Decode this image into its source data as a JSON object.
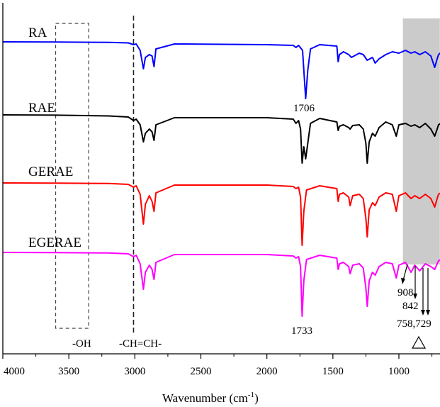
{
  "chart_data": {
    "type": "line",
    "title": "",
    "xlabel": "Wavenumber (cm",
    "xlabel_sup": "-1",
    "xlabel_end": ")",
    "ylabel": "",
    "xlim": [
      4000,
      600
    ],
    "x_reversed": true,
    "xticks": [
      4000,
      3500,
      3000,
      2500,
      2000,
      1500,
      1000
    ],
    "grid": false,
    "legend": "none",
    "series": [
      {
        "name": "RA",
        "color": "#0000ff",
        "baseline": 0,
        "points": [
          [
            4000,
            0
          ],
          [
            3600,
            0.2
          ],
          [
            3200,
            0.8
          ],
          [
            3050,
            1.5
          ],
          [
            3010,
            4
          ],
          [
            2990,
            3
          ],
          [
            2960,
            12
          ],
          [
            2935,
            38
          ],
          [
            2920,
            22
          ],
          [
            2890,
            18
          ],
          [
            2870,
            20
          ],
          [
            2855,
            35
          ],
          [
            2840,
            10
          ],
          [
            2700,
            3
          ],
          [
            2000,
            4
          ],
          [
            1800,
            5
          ],
          [
            1780,
            8
          ],
          [
            1760,
            5
          ],
          [
            1730,
            12
          ],
          [
            1706,
            80
          ],
          [
            1690,
            40
          ],
          [
            1670,
            10
          ],
          [
            1600,
            4
          ],
          [
            1470,
            6
          ],
          [
            1460,
            28
          ],
          [
            1450,
            18
          ],
          [
            1420,
            14
          ],
          [
            1380,
            18
          ],
          [
            1360,
            22
          ],
          [
            1300,
            16
          ],
          [
            1270,
            18
          ],
          [
            1240,
            26
          ],
          [
            1200,
            22
          ],
          [
            1180,
            30
          ],
          [
            1150,
            24
          ],
          [
            1100,
            18
          ],
          [
            1050,
            14
          ],
          [
            1000,
            16
          ],
          [
            950,
            12
          ],
          [
            908,
            16
          ],
          [
            880,
            14
          ],
          [
            842,
            18
          ],
          [
            800,
            14
          ],
          [
            758,
            20
          ],
          [
            729,
            36
          ],
          [
            710,
            24
          ],
          [
            700,
            18
          ],
          [
            650,
            10
          ],
          [
            621,
            6
          ]
        ]
      },
      {
        "name": "RAE",
        "color": "#000000",
        "baseline": 0,
        "points": [
          [
            4000,
            0
          ],
          [
            3600,
            0.4
          ],
          [
            3200,
            1.5
          ],
          [
            3050,
            3
          ],
          [
            3010,
            8
          ],
          [
            2990,
            6
          ],
          [
            2960,
            14
          ],
          [
            2935,
            38
          ],
          [
            2920,
            26
          ],
          [
            2890,
            20
          ],
          [
            2870,
            24
          ],
          [
            2855,
            36
          ],
          [
            2840,
            14
          ],
          [
            2700,
            4
          ],
          [
            2000,
            4
          ],
          [
            1800,
            6
          ],
          [
            1780,
            12
          ],
          [
            1760,
            8
          ],
          [
            1745,
            20
          ],
          [
            1733,
            68
          ],
          [
            1720,
            45
          ],
          [
            1706,
            62
          ],
          [
            1690,
            40
          ],
          [
            1670,
            12
          ],
          [
            1600,
            5
          ],
          [
            1470,
            10
          ],
          [
            1460,
            22
          ],
          [
            1450,
            16
          ],
          [
            1420,
            14
          ],
          [
            1380,
            18
          ],
          [
            1370,
            20
          ],
          [
            1350,
            15
          ],
          [
            1300,
            14
          ],
          [
            1270,
            20
          ],
          [
            1250,
            40
          ],
          [
            1240,
            68
          ],
          [
            1225,
            38
          ],
          [
            1200,
            26
          ],
          [
            1180,
            30
          ],
          [
            1150,
            18
          ],
          [
            1100,
            10
          ],
          [
            1050,
            14
          ],
          [
            1020,
            30
          ],
          [
            1000,
            14
          ],
          [
            950,
            12
          ],
          [
            908,
            16
          ],
          [
            880,
            14
          ],
          [
            842,
            18
          ],
          [
            800,
            12
          ],
          [
            758,
            20
          ],
          [
            729,
            30
          ],
          [
            710,
            20
          ],
          [
            700,
            14
          ],
          [
            650,
            8
          ],
          [
            621,
            4
          ]
        ]
      },
      {
        "name": "GERAE",
        "color": "#ff0000",
        "baseline": 0,
        "points": [
          [
            4000,
            0
          ],
          [
            3600,
            0.2
          ],
          [
            3200,
            0.8
          ],
          [
            3050,
            2
          ],
          [
            3010,
            6
          ],
          [
            2990,
            4
          ],
          [
            2960,
            16
          ],
          [
            2935,
            58
          ],
          [
            2920,
            30
          ],
          [
            2890,
            18
          ],
          [
            2870,
            26
          ],
          [
            2855,
            40
          ],
          [
            2840,
            14
          ],
          [
            2700,
            3
          ],
          [
            2000,
            3
          ],
          [
            1800,
            5
          ],
          [
            1780,
            8
          ],
          [
            1760,
            6
          ],
          [
            1745,
            20
          ],
          [
            1733,
            88
          ],
          [
            1720,
            40
          ],
          [
            1700,
            10
          ],
          [
            1600,
            4
          ],
          [
            1470,
            8
          ],
          [
            1460,
            26
          ],
          [
            1450,
            16
          ],
          [
            1420,
            14
          ],
          [
            1380,
            20
          ],
          [
            1370,
            32
          ],
          [
            1350,
            18
          ],
          [
            1300,
            16
          ],
          [
            1270,
            22
          ],
          [
            1250,
            50
          ],
          [
            1240,
            76
          ],
          [
            1225,
            38
          ],
          [
            1200,
            28
          ],
          [
            1180,
            32
          ],
          [
            1150,
            20
          ],
          [
            1100,
            14
          ],
          [
            1050,
            16
          ],
          [
            1020,
            40
          ],
          [
            1000,
            18
          ],
          [
            950,
            14
          ],
          [
            908,
            22
          ],
          [
            880,
            18
          ],
          [
            842,
            22
          ],
          [
            800,
            16
          ],
          [
            758,
            22
          ],
          [
            729,
            34
          ],
          [
            710,
            22
          ],
          [
            700,
            16
          ],
          [
            650,
            10
          ],
          [
            621,
            6
          ]
        ]
      },
      {
        "name": "EGERAE",
        "color": "#ff00ff",
        "baseline": 0,
        "points": [
          [
            4000,
            0
          ],
          [
            3600,
            0.2
          ],
          [
            3200,
            0.8
          ],
          [
            3050,
            2
          ],
          [
            3010,
            6
          ],
          [
            2990,
            4
          ],
          [
            2960,
            16
          ],
          [
            2935,
            52
          ],
          [
            2920,
            28
          ],
          [
            2890,
            18
          ],
          [
            2870,
            24
          ],
          [
            2855,
            38
          ],
          [
            2840,
            14
          ],
          [
            2700,
            3
          ],
          [
            2000,
            3
          ],
          [
            1800,
            5
          ],
          [
            1780,
            8
          ],
          [
            1760,
            6
          ],
          [
            1745,
            20
          ],
          [
            1733,
            90
          ],
          [
            1720,
            40
          ],
          [
            1700,
            10
          ],
          [
            1600,
            4
          ],
          [
            1470,
            8
          ],
          [
            1460,
            24
          ],
          [
            1450,
            16
          ],
          [
            1420,
            14
          ],
          [
            1380,
            20
          ],
          [
            1370,
            30
          ],
          [
            1350,
            18
          ],
          [
            1300,
            16
          ],
          [
            1270,
            22
          ],
          [
            1250,
            50
          ],
          [
            1240,
            76
          ],
          [
            1225,
            40
          ],
          [
            1200,
            28
          ],
          [
            1180,
            32
          ],
          [
            1150,
            20
          ],
          [
            1100,
            14
          ],
          [
            1050,
            16
          ],
          [
            1020,
            36
          ],
          [
            1000,
            18
          ],
          [
            950,
            14
          ],
          [
            908,
            28
          ],
          [
            880,
            18
          ],
          [
            842,
            26
          ],
          [
            800,
            16
          ],
          [
            758,
            20
          ],
          [
            729,
            24
          ],
          [
            710,
            16
          ],
          [
            700,
            12
          ],
          [
            650,
            6
          ],
          [
            621,
            3
          ]
        ]
      }
    ],
    "annotations": [
      {
        "text": "1706",
        "x": 1706,
        "series": "RA"
      },
      {
        "text": "1733",
        "x": 1733,
        "series": "EGERAE"
      },
      {
        "text": "908",
        "x": 908
      },
      {
        "text": "842",
        "x": 842
      },
      {
        "text": "758,729",
        "x": 745
      },
      {
        "text": "-OH",
        "x": 3480
      },
      {
        "text": "-CH=CH-",
        "x": 3000
      }
    ],
    "highlight_regions": [
      {
        "type": "dashed-box",
        "label": "-OH",
        "x": [
          3600,
          3350
        ]
      },
      {
        "type": "dashed-line",
        "label": "-CH=CH-",
        "x": 3010
      },
      {
        "type": "shaded-band",
        "x": [
          970,
          690
        ],
        "color": "#c8c8c8"
      }
    ],
    "marker_symbol": "open-triangle"
  }
}
